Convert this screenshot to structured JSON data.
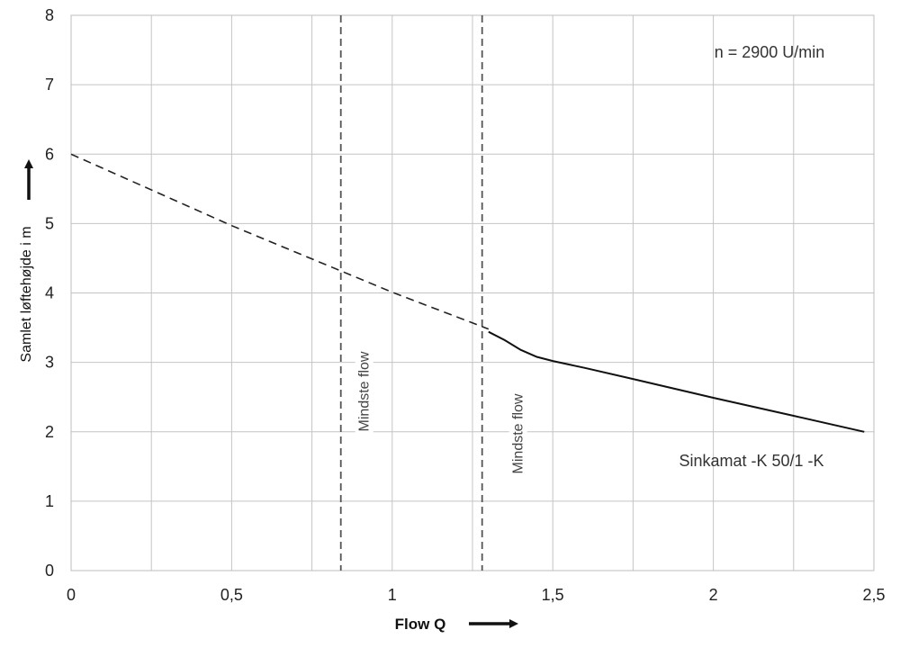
{
  "chart_data": {
    "type": "line",
    "xlabel": "Flow Q",
    "ylabel": "Samlet løftehøjde i m",
    "xlim": [
      0,
      2.5
    ],
    "ylim": [
      0,
      8
    ],
    "x_ticks": [
      0,
      0.5,
      1,
      1.5,
      2,
      2.5
    ],
    "x_tick_labels": [
      "0",
      "0,5",
      "1",
      "1,5",
      "2",
      "2,5"
    ],
    "y_ticks": [
      0,
      1,
      2,
      3,
      4,
      5,
      6,
      7,
      8
    ],
    "y_tick_labels": [
      "0",
      "1",
      "2",
      "3",
      "4",
      "5",
      "6",
      "7",
      "8"
    ],
    "x_minor_grid": [
      0.25,
      0.75,
      1.25,
      1.75,
      2.25
    ],
    "grid": true,
    "series": [
      {
        "name": "Sinkamat -K 50/1 -K",
        "style": "dashed",
        "color": "#222222",
        "x": [
          0,
          0.5,
          1.0,
          1.3
        ],
        "y": [
          6.0,
          4.97,
          4.01,
          3.48
        ]
      },
      {
        "name": "Sinkamat -K 50/1 -K",
        "style": "solid",
        "color": "#111111",
        "x": [
          1.3,
          1.35,
          1.4,
          1.45,
          1.5,
          1.6,
          1.75,
          2.0,
          2.25,
          2.47
        ],
        "y": [
          3.44,
          3.32,
          3.18,
          3.08,
          3.02,
          2.92,
          2.76,
          2.49,
          2.23,
          2.0
        ]
      }
    ],
    "vertical_lines": [
      {
        "x": 0.84,
        "label": "Mindste flow",
        "style": "dashed"
      },
      {
        "x": 1.28,
        "label": "Mindste flow",
        "style": "dashed"
      }
    ],
    "annotations": {
      "speed": "n = 2900   U/min",
      "curve_label": "Sinkamat  -K 50/1 -K"
    }
  }
}
